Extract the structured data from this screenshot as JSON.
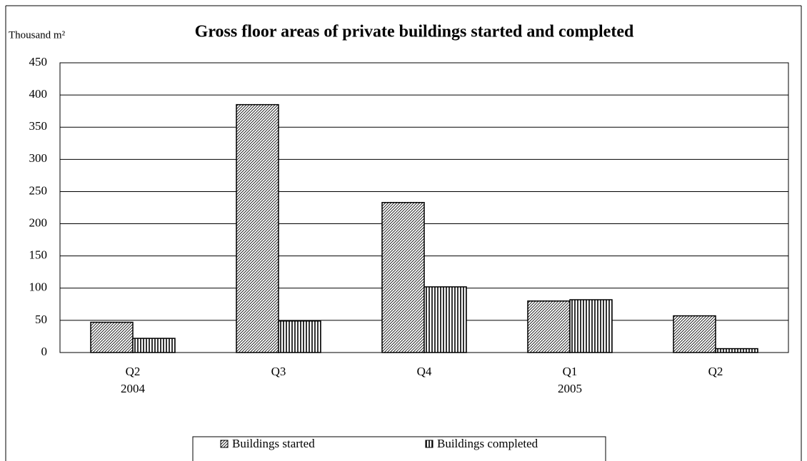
{
  "chart_data": {
    "type": "bar",
    "title": "Gross floor areas of private buildings started and completed",
    "y_label": "Thousand m²",
    "categories": [
      "Q2",
      "Q3",
      "Q4",
      "Q1",
      "Q2"
    ],
    "category_years": [
      "2004",
      null,
      null,
      "2005",
      null
    ],
    "series": [
      {
        "name": "Buildings started",
        "color": "#000000",
        "pattern": "diagonal",
        "values": [
          47,
          385,
          233,
          80,
          57
        ]
      },
      {
        "name": "Buildings completed",
        "color": "#000000",
        "pattern": "vertical",
        "values": [
          22,
          49,
          102,
          82,
          6
        ]
      }
    ],
    "ylim": [
      0,
      450
    ],
    "yticks": [
      0,
      50,
      100,
      150,
      200,
      250,
      300,
      350,
      400,
      450
    ],
    "grid": true,
    "legend": "bottom"
  }
}
